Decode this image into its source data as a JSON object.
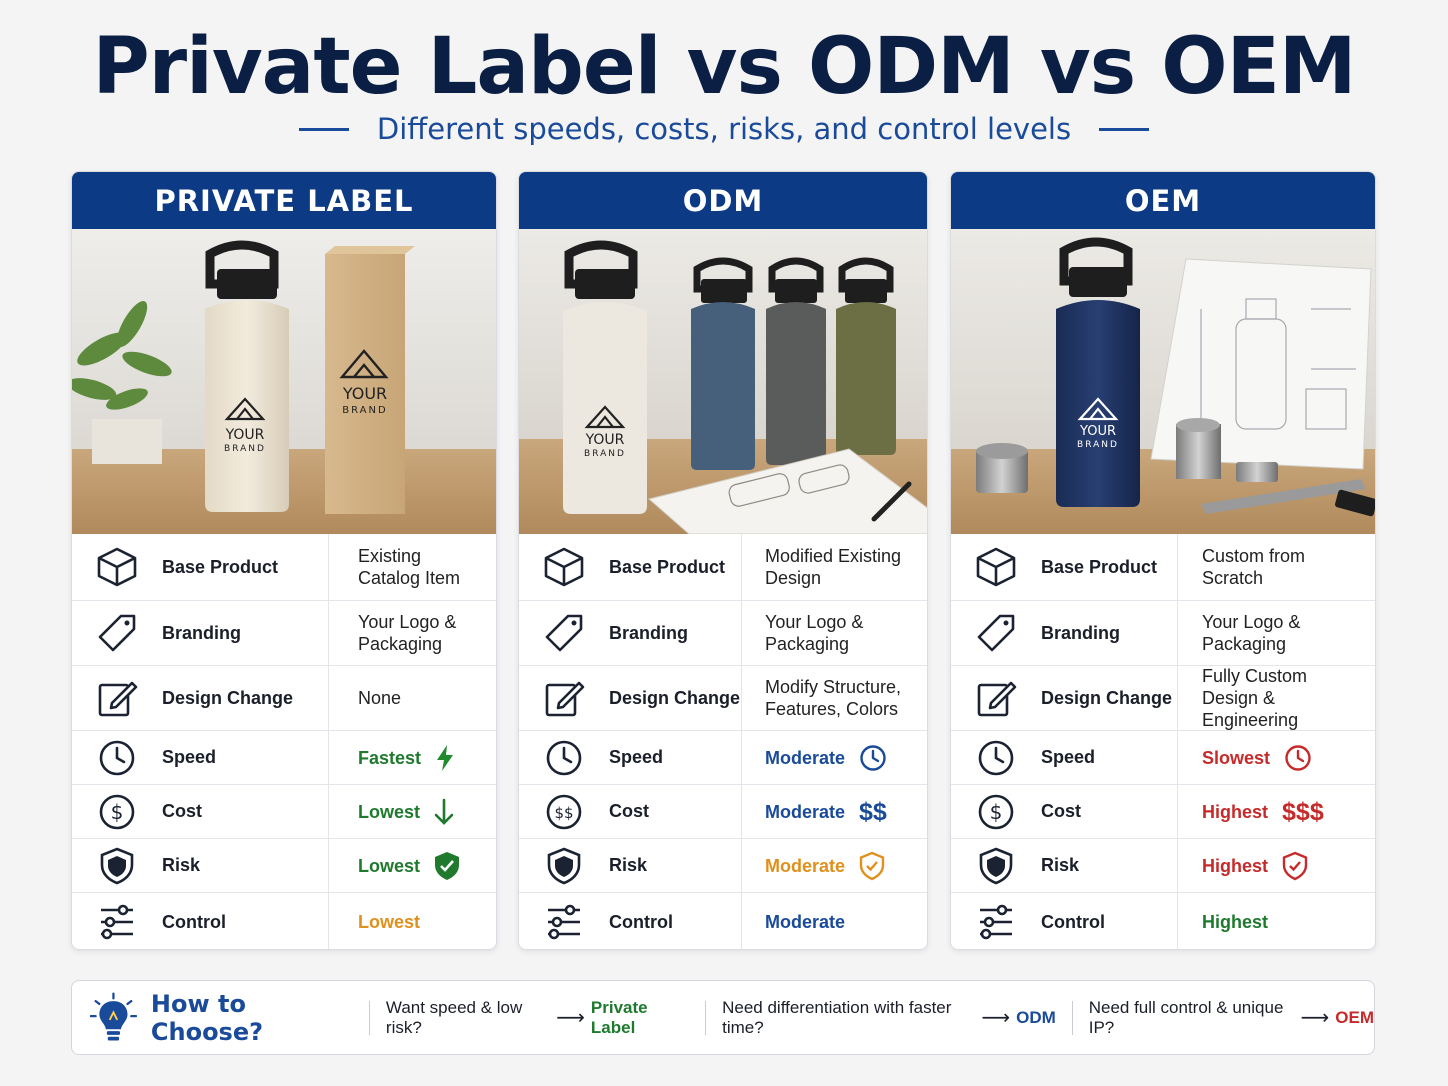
{
  "title": "Private Label vs ODM vs OEM",
  "subtitle": "Different speeds, costs, risks, and control levels",
  "columns": [
    {
      "header": "PRIVATE LABEL",
      "rows": [
        {
          "label": "Base Product",
          "value": "Existing\nCatalog Item"
        },
        {
          "label": "Branding",
          "value": "Your Logo &\nPackaging"
        },
        {
          "label": "Design Change",
          "value": "None"
        },
        {
          "label": "Speed",
          "value": "Fastest"
        },
        {
          "label": "Cost",
          "value": "Lowest"
        },
        {
          "label": "Risk",
          "value": "Lowest"
        },
        {
          "label": "Control",
          "value": "Lowest"
        }
      ]
    },
    {
      "header": "ODM",
      "rows": [
        {
          "label": "Base Product",
          "value": "Modified Existing\nDesign"
        },
        {
          "label": "Branding",
          "value": "Your Logo &\nPackaging"
        },
        {
          "label": "Design Change",
          "value": "Modify Structure,\nFeatures, Colors"
        },
        {
          "label": "Speed",
          "value": "Moderate"
        },
        {
          "label": "Cost",
          "value": "Moderate",
          "symbol": "$$"
        },
        {
          "label": "Risk",
          "value": "Moderate"
        },
        {
          "label": "Control",
          "value": "Moderate"
        }
      ]
    },
    {
      "header": "OEM",
      "rows": [
        {
          "label": "Base Product",
          "value": "Custom from\nScratch"
        },
        {
          "label": "Branding",
          "value": "Your Logo &\nPackaging"
        },
        {
          "label": "Design Change",
          "value": "Fully Custom\nDesign & Engineering"
        },
        {
          "label": "Speed",
          "value": "Slowest"
        },
        {
          "label": "Cost",
          "value": "Highest",
          "symbol": "$$$"
        },
        {
          "label": "Risk",
          "value": "Highest"
        },
        {
          "label": "Control",
          "value": "Highest"
        }
      ]
    }
  ],
  "brand_mark": {
    "line1": "YOUR",
    "line2": "BRAND"
  },
  "footer": {
    "title": "How to Choose?",
    "items": [
      {
        "question": "Want speed & low risk?",
        "answer": "Private Label"
      },
      {
        "question": "Need differentiation with faster time?",
        "answer": "ODM"
      },
      {
        "question": "Need full control & unique IP?",
        "answer": "OEM"
      }
    ]
  },
  "colors": {
    "navy": "#0b1f44",
    "header_blue": "#0d3a85",
    "accent_blue": "#1a4a9a",
    "green": "#1f7a2e",
    "orange": "#e0901c",
    "red": "#c62a2a"
  },
  "icons": [
    "cube-icon",
    "tag-icon",
    "edit-icon",
    "clock-icon",
    "dollar-icon",
    "shield-icon",
    "sliders-icon",
    "lightbulb-icon"
  ]
}
